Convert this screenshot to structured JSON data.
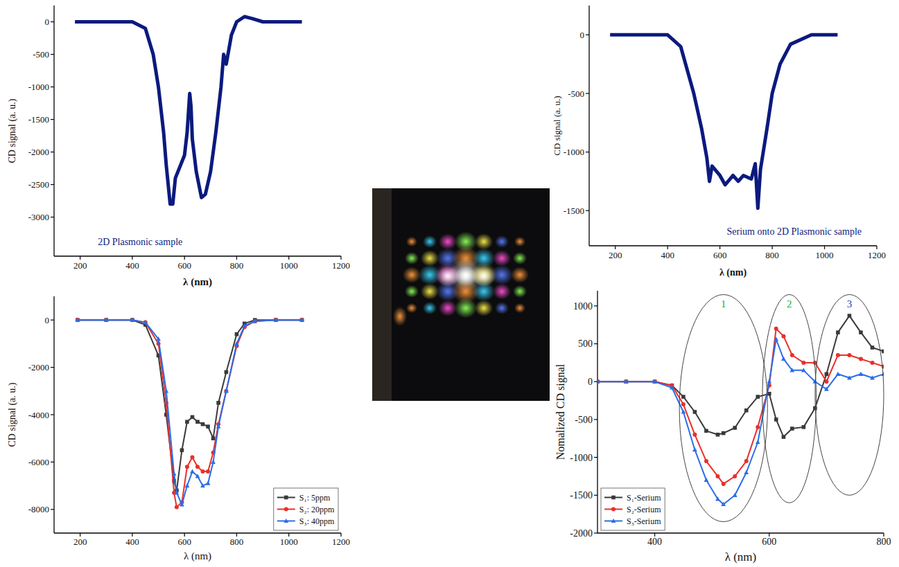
{
  "chart_data": [
    {
      "type": "line",
      "title": "2D Plasmonic sample",
      "x_label": "λ (nm)",
      "y_label": "CD signal (a. u.)",
      "xlim": [
        100,
        1200
      ],
      "ylim": [
        -3600,
        250
      ],
      "xticks": [
        200,
        400,
        600,
        800,
        1000,
        1200
      ],
      "yticks": [
        0,
        -500,
        -1000,
        -1500,
        -2000,
        -2500,
        -3000
      ],
      "x": [
        180,
        300,
        400,
        450,
        480,
        500,
        520,
        530,
        545,
        555,
        565,
        580,
        600,
        610,
        615,
        620,
        625,
        630,
        645,
        665,
        680,
        700,
        720,
        740,
        750,
        760,
        780,
        800,
        830,
        860,
        900,
        1000,
        1050
      ],
      "series": [
        {
          "color": "#0b1a7e",
          "values": [
            0,
            0,
            0,
            -100,
            -500,
            -1000,
            -1700,
            -2200,
            -2800,
            -2800,
            -2400,
            -2250,
            -2050,
            -1700,
            -1400,
            -1100,
            -1300,
            -1800,
            -2300,
            -2700,
            -2650,
            -2300,
            -1700,
            -1000,
            -500,
            -650,
            -200,
            0,
            80,
            50,
            0,
            0,
            0
          ]
        }
      ]
    },
    {
      "type": "line",
      "title": "Serium onto 2D Plasmonic sample",
      "x_label": "λ (nm)",
      "y_label": "CD signal (a. u.)",
      "xlim": [
        100,
        1200
      ],
      "ylim": [
        -1800,
        250
      ],
      "xticks": [
        200,
        400,
        600,
        800,
        1000,
        1200
      ],
      "yticks": [
        0,
        -500,
        -1000,
        -1500
      ],
      "x": [
        180,
        300,
        400,
        450,
        500,
        530,
        550,
        560,
        570,
        600,
        620,
        650,
        670,
        690,
        720,
        735,
        745,
        755,
        780,
        800,
        830,
        870,
        950,
        1050
      ],
      "series": [
        {
          "color": "#0b1a7e",
          "values": [
            0,
            0,
            0,
            -100,
            -500,
            -800,
            -1050,
            -1250,
            -1120,
            -1200,
            -1280,
            -1200,
            -1250,
            -1200,
            -1230,
            -1100,
            -1480,
            -1150,
            -800,
            -500,
            -250,
            -80,
            0,
            0
          ]
        }
      ]
    },
    {
      "type": "line",
      "x_label": "λ (nm)",
      "y_label": "CD signal (a. u.)",
      "xlim": [
        100,
        1200
      ],
      "ylim": [
        -9000,
        1000
      ],
      "xticks": [
        200,
        400,
        600,
        800,
        1000,
        1200
      ],
      "yticks": [
        0,
        -2000,
        -4000,
        -6000,
        -8000
      ],
      "legend": "lower right",
      "x": [
        190,
        300,
        400,
        450,
        500,
        530,
        560,
        570,
        590,
        610,
        630,
        650,
        670,
        690,
        710,
        730,
        760,
        800,
        830,
        870,
        950,
        1050
      ],
      "series": [
        {
          "name": "S₁: 5ppm",
          "color": "#3a3a3a",
          "marker": "square",
          "values": [
            0,
            0,
            0,
            -200,
            -1500,
            -4000,
            -6800,
            -7200,
            -5500,
            -4300,
            -4100,
            -4300,
            -4400,
            -4500,
            -5000,
            -3500,
            -2200,
            -600,
            -150,
            0,
            0,
            0
          ]
        },
        {
          "name": "S₂: 20ppm",
          "color": "#e8302a",
          "marker": "circle",
          "values": [
            0,
            0,
            0,
            -100,
            -1000,
            -3500,
            -7300,
            -7900,
            -7700,
            -6200,
            -5800,
            -6200,
            -6400,
            -6400,
            -5600,
            -4400,
            -3000,
            -1100,
            -300,
            -50,
            0,
            0
          ]
        },
        {
          "name": "S₃: 40ppm",
          "color": "#2a6ee8",
          "marker": "triangle",
          "values": [
            0,
            0,
            0,
            -100,
            -800,
            -3000,
            -6500,
            -7300,
            -7800,
            -7000,
            -6400,
            -6600,
            -7000,
            -6900,
            -6000,
            -4500,
            -3000,
            -1000,
            -250,
            -50,
            0,
            0
          ]
        }
      ]
    },
    {
      "type": "line",
      "x_label": "λ (nm)",
      "y_label": "Nomalized CD signal",
      "xlim": [
        300,
        800
      ],
      "ylim": [
        -2000,
        1200
      ],
      "xticks": [
        400,
        600,
        800
      ],
      "yticks": [
        1000,
        500,
        0,
        -500,
        -1000,
        -1500,
        -2000
      ],
      "legend": "lower left",
      "x": [
        300,
        350,
        400,
        430,
        450,
        470,
        490,
        510,
        520,
        540,
        560,
        580,
        600,
        612,
        625,
        640,
        660,
        680,
        700,
        720,
        740,
        760,
        780,
        800
      ],
      "series": [
        {
          "name": "S₁-Serium",
          "color": "#3a3a3a",
          "marker": "square",
          "values": [
            0,
            0,
            0,
            -50,
            -200,
            -400,
            -650,
            -700,
            -680,
            -610,
            -380,
            -200,
            -160,
            -500,
            -730,
            -620,
            -600,
            -350,
            100,
            650,
            870,
            650,
            450,
            400
          ]
        },
        {
          "name": "S₂-Serium",
          "color": "#e8302a",
          "marker": "circle",
          "values": [
            0,
            0,
            0,
            -50,
            -300,
            -700,
            -1050,
            -1250,
            -1350,
            -1250,
            -1050,
            -600,
            -50,
            700,
            600,
            350,
            250,
            250,
            0,
            350,
            350,
            300,
            250,
            200
          ]
        },
        {
          "name": "S₃-Serium",
          "color": "#2a6ee8",
          "marker": "triangle",
          "values": [
            0,
            0,
            0,
            -80,
            -400,
            -900,
            -1300,
            -1550,
            -1620,
            -1500,
            -1200,
            -800,
            0,
            560,
            300,
            150,
            150,
            0,
            -100,
            100,
            50,
            100,
            50,
            100
          ]
        }
      ],
      "annotations": [
        {
          "text": "1",
          "color": "#22b022",
          "x": [
            443,
            597
          ],
          "y": [
            -1850,
            1150
          ]
        },
        {
          "text": "2",
          "color": "#22b022",
          "x": [
            588,
            682
          ],
          "y": [
            -1600,
            1150
          ]
        },
        {
          "text": "3",
          "color": "#1f3fbf",
          "x": [
            680,
            800
          ],
          "y": [
            -1500,
            1150
          ]
        }
      ]
    }
  ]
}
